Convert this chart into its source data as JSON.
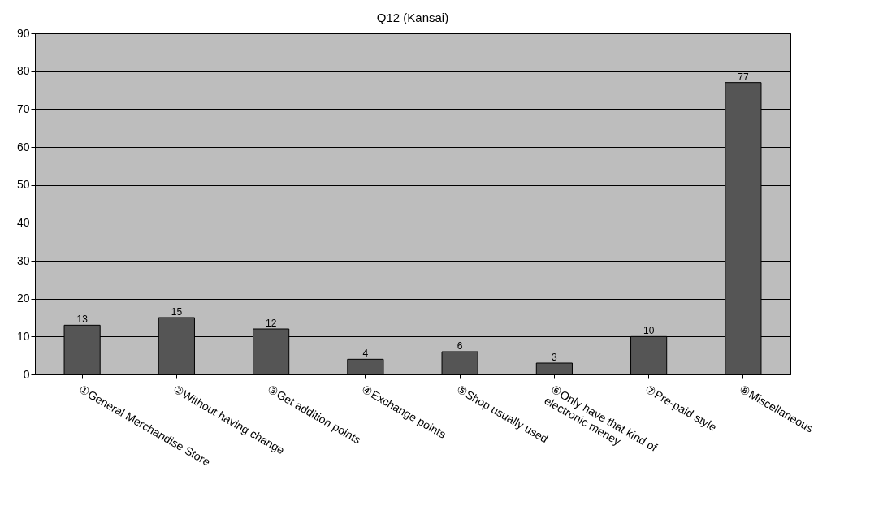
{
  "chart_data": {
    "type": "bar",
    "title": "Q12 (Kansai)",
    "categories": [
      "①General Merchandise Store",
      "②Without having change",
      "③Get addition points",
      "④Exchange points",
      "⑤Shop usually used",
      "⑥Only have that kind of\nelectronic meney",
      "⑦Pre-paid style",
      "⑧Miscellaneous"
    ],
    "values": [
      13,
      15,
      12,
      4,
      6,
      3,
      10,
      77
    ],
    "color": "#555555",
    "ylim": [
      0,
      90
    ],
    "yticks": [
      0,
      10,
      20,
      30,
      40,
      50,
      60,
      70,
      80,
      90
    ],
    "grid": "y",
    "data_labels": true
  }
}
